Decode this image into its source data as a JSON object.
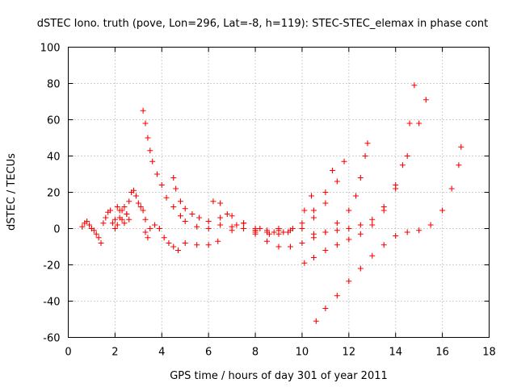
{
  "chart_data": {
    "type": "scatter",
    "title": "dSTEC Iono. truth (pove, Lon=296, Lat=-8, h=119): STEC-STEC_elemax in phase cont",
    "xlabel": "GPS time / hours of day 301 of year 2011",
    "ylabel": "dSTEC  / TECUs",
    "xlim": [
      0,
      18
    ],
    "ylim": [
      -60,
      100
    ],
    "xticks": [
      "0",
      "2",
      "4",
      "6",
      "8",
      "10",
      "12",
      "14",
      "16",
      "18"
    ],
    "yticks": [
      "-60",
      "-40",
      "-20",
      "0",
      "20",
      "40",
      "60",
      "80",
      "100"
    ],
    "grid": true,
    "marker": "plus",
    "color": "#ff0000",
    "series": [
      {
        "x": [
          0.6,
          0.7,
          0.8,
          0.9,
          1.0,
          1.1,
          1.2,
          1.3,
          1.4
        ],
        "y": [
          1,
          3,
          4,
          2,
          0,
          -1,
          -3,
          -5,
          -8
        ]
      },
      {
        "x": [
          1.5,
          1.6,
          1.7,
          1.8,
          1.9,
          2.0,
          2.1,
          2.2,
          2.3,
          2.4,
          2.5,
          2.6
        ],
        "y": [
          3,
          6,
          9,
          10,
          3,
          0,
          2,
          6,
          10,
          12,
          8,
          5
        ]
      },
      {
        "x": [
          2.0,
          2.1,
          2.2,
          2.3,
          2.4,
          2.5,
          2.6,
          2.7,
          2.8,
          2.9,
          3.0,
          3.1,
          3.2,
          3.3,
          3.4
        ],
        "y": [
          5,
          12,
          10,
          5,
          3,
          8,
          15,
          20,
          21,
          18,
          14,
          12,
          10,
          5,
          -5
        ]
      },
      {
        "x": [
          3.3,
          3.5,
          3.7,
          3.9,
          4.1,
          4.3,
          4.5,
          4.7,
          5.0,
          5.5,
          6.0,
          6.4
        ],
        "y": [
          -2,
          0,
          2,
          0,
          -5,
          -8,
          -10,
          -12,
          -8,
          -9,
          -9,
          -7
        ]
      },
      {
        "x": [
          3.2,
          3.3,
          3.4,
          3.5,
          3.6,
          3.8,
          4.0,
          4.2,
          4.5,
          4.8,
          5.0,
          5.5,
          6.0,
          7.0,
          8.0,
          9.0
        ],
        "y": [
          65,
          58,
          50,
          43,
          37,
          30,
          24,
          17,
          12,
          7,
          4,
          1,
          0,
          -1,
          -2,
          -1
        ]
      },
      {
        "x": [
          4.5,
          4.6,
          4.8,
          5.0,
          5.3,
          5.6,
          6.0,
          6.5,
          7.0,
          7.5,
          8.0,
          8.5,
          9.0
        ],
        "y": [
          28,
          22,
          15,
          11,
          8,
          6,
          4,
          2,
          1,
          0,
          -1,
          -1,
          0
        ]
      },
      {
        "x": [
          6.5,
          7.0,
          7.5,
          8.0,
          8.5,
          9.0,
          9.5,
          10.0,
          10.5,
          11.0,
          11.3
        ],
        "y": [
          14,
          7,
          3,
          0,
          -2,
          -3,
          -1,
          3,
          10,
          20,
          32
        ]
      },
      {
        "x": [
          6.2,
          6.8,
          7.5,
          8.2,
          8.8,
          9.4,
          10.0,
          10.5,
          11.0,
          11.5,
          11.8
        ],
        "y": [
          15,
          8,
          3,
          0,
          -2,
          -2,
          0,
          6,
          14,
          26,
          37
        ]
      },
      {
        "x": [
          6.5,
          7.2,
          8.0,
          8.6,
          9.2,
          9.6,
          10.1,
          10.4
        ],
        "y": [
          6,
          2,
          -1,
          -3,
          -2,
          0,
          10,
          18
        ]
      },
      {
        "x": [
          8.0,
          8.5,
          9.0,
          9.5,
          10.0,
          10.5,
          11.0,
          11.5,
          12.0,
          12.3,
          12.5,
          12.7,
          12.8
        ],
        "y": [
          -3,
          -7,
          -10,
          -10,
          -8,
          -5,
          -2,
          3,
          10,
          18,
          28,
          40,
          47
        ]
      },
      {
        "x": [
          10.1,
          10.5,
          11.0,
          11.5,
          12.0,
          12.5,
          13.0,
          13.5,
          14.0,
          14.3,
          14.6,
          14.8
        ],
        "y": [
          -19,
          -16,
          -12,
          -9,
          -6,
          -3,
          2,
          10,
          22,
          35,
          58,
          79
        ]
      },
      {
        "x": [
          10.5,
          11.0,
          11.5,
          12.0,
          12.5,
          13.0,
          13.5,
          14.0,
          14.5,
          15.0,
          15.3
        ],
        "y": [
          -3,
          -2,
          -1,
          0,
          2,
          5,
          12,
          24,
          40,
          58,
          71
        ]
      },
      {
        "x": [
          10.6,
          11.0,
          11.5,
          12.0,
          12.5,
          13.0,
          13.5,
          14.0,
          14.5,
          15.0,
          15.5,
          16.0,
          16.4,
          16.7,
          16.8
        ],
        "y": [
          -51,
          -44,
          -37,
          -29,
          -22,
          -15,
          -9,
          -4,
          -2,
          -1,
          2,
          10,
          22,
          35,
          45
        ]
      }
    ]
  }
}
